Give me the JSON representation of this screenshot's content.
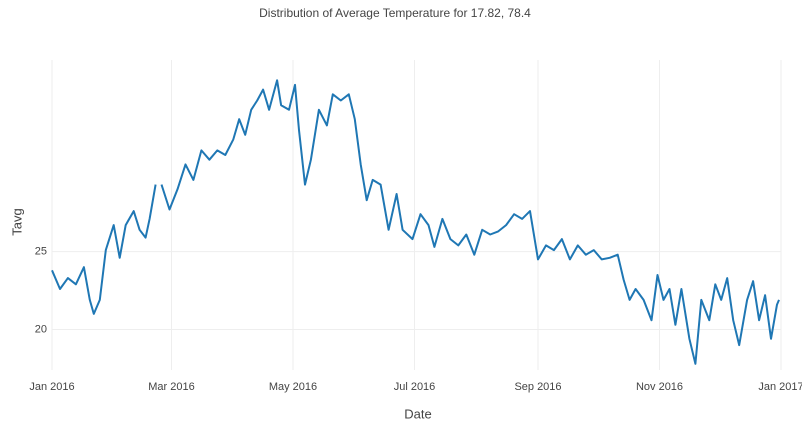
{
  "chart_data": {
    "type": "line",
    "title": "Distribution of Average Temperature for 17.82, 78.4",
    "xlabel": "Date",
    "ylabel": "Tavg",
    "x": [
      "2016-01-01",
      "2016-01-05",
      "2016-01-09",
      "2016-01-13",
      "2016-01-17",
      "2016-01-20",
      "2016-01-22",
      "2016-01-25",
      "2016-01-28",
      "2016-02-01",
      "2016-02-04",
      "2016-02-07",
      "2016-02-11",
      "2016-02-14",
      "2016-02-17",
      "2016-02-19",
      "2016-02-22",
      "2016-02-24",
      "2016-02-25",
      "2016-02-29",
      "2016-03-04",
      "2016-03-08",
      "2016-03-12",
      "2016-03-16",
      "2016-03-20",
      "2016-03-24",
      "2016-03-28",
      "2016-04-01",
      "2016-04-04",
      "2016-04-07",
      "2016-04-10",
      "2016-04-13",
      "2016-04-16",
      "2016-04-19",
      "2016-04-23",
      "2016-04-25",
      "2016-04-29",
      "2016-05-02",
      "2016-05-04",
      "2016-05-07",
      "2016-05-10",
      "2016-05-14",
      "2016-05-18",
      "2016-05-21",
      "2016-05-25",
      "2016-05-29",
      "2016-06-01",
      "2016-06-04",
      "2016-06-07",
      "2016-06-10",
      "2016-06-14",
      "2016-06-18",
      "2016-06-22",
      "2016-06-25",
      "2016-06-30",
      "2016-07-04",
      "2016-07-08",
      "2016-07-11",
      "2016-07-15",
      "2016-07-19",
      "2016-07-23",
      "2016-07-27",
      "2016-07-31",
      "2016-08-04",
      "2016-08-08",
      "2016-08-12",
      "2016-08-16",
      "2016-08-20",
      "2016-08-24",
      "2016-08-28",
      "2016-09-01",
      "2016-09-05",
      "2016-09-09",
      "2016-09-13",
      "2016-09-17",
      "2016-09-21",
      "2016-09-25",
      "2016-09-29",
      "2016-10-03",
      "2016-10-07",
      "2016-10-11",
      "2016-10-14",
      "2016-10-17",
      "2016-10-20",
      "2016-10-24",
      "2016-10-28",
      "2016-10-31",
      "2016-11-03",
      "2016-11-06",
      "2016-11-09",
      "2016-11-12",
      "2016-11-16",
      "2016-11-19",
      "2016-11-22",
      "2016-11-26",
      "2016-11-29",
      "2016-12-02",
      "2016-12-05",
      "2016-12-08",
      "2016-12-11",
      "2016-12-15",
      "2016-12-18",
      "2016-12-21",
      "2016-12-24",
      "2016-12-27",
      "2016-12-30",
      "2016-12-31"
    ],
    "series": [
      {
        "name": "Tavg",
        "color": "#1f77b4",
        "values": [
          23.8,
          22.6,
          23.3,
          22.9,
          24.0,
          21.9,
          21.0,
          21.9,
          25.1,
          26.7,
          24.6,
          26.7,
          27.6,
          26.4,
          25.9,
          27.1,
          29.3,
          null,
          29.3,
          27.7,
          29.0,
          30.6,
          29.6,
          31.5,
          30.9,
          31.5,
          31.2,
          32.2,
          33.5,
          32.5,
          34.1,
          34.7,
          35.4,
          34.1,
          36.0,
          34.4,
          34.1,
          35.7,
          32.8,
          29.3,
          30.9,
          34.1,
          33.1,
          35.1,
          34.7,
          35.1,
          33.5,
          30.6,
          28.3,
          29.6,
          29.3,
          26.4,
          28.7,
          26.4,
          25.8,
          27.4,
          26.7,
          25.3,
          27.1,
          25.8,
          25.4,
          26.1,
          24.8,
          26.4,
          26.1,
          26.3,
          26.7,
          27.4,
          27.1,
          27.6,
          24.5,
          25.4,
          25.1,
          25.8,
          24.5,
          25.4,
          24.8,
          25.1,
          24.5,
          24.6,
          24.8,
          23.2,
          21.9,
          22.6,
          21.9,
          20.6,
          23.5,
          21.9,
          22.6,
          20.3,
          22.6,
          19.4,
          17.8,
          21.9,
          20.6,
          22.9,
          21.9,
          23.3,
          20.6,
          19.0,
          21.9,
          23.1,
          20.6,
          22.2,
          19.4,
          21.6,
          21.9
        ]
      }
    ],
    "xlim": [
      "2016-01-01",
      "2017-01-01"
    ],
    "xticks": [
      {
        "value": "2016-01-01",
        "label": "Jan 2016"
      },
      {
        "value": "2016-03-01",
        "label": "Mar 2016"
      },
      {
        "value": "2016-05-01",
        "label": "May 2016"
      },
      {
        "value": "2016-07-01",
        "label": "Jul 2016"
      },
      {
        "value": "2016-09-01",
        "label": "Sep 2016"
      },
      {
        "value": "2016-11-01",
        "label": "Nov 2016"
      },
      {
        "value": "2017-01-01",
        "label": "Jan 2017"
      }
    ],
    "ylim": [
      17.4,
      37.3
    ],
    "yticks": [
      20,
      25
    ],
    "grid": true
  }
}
